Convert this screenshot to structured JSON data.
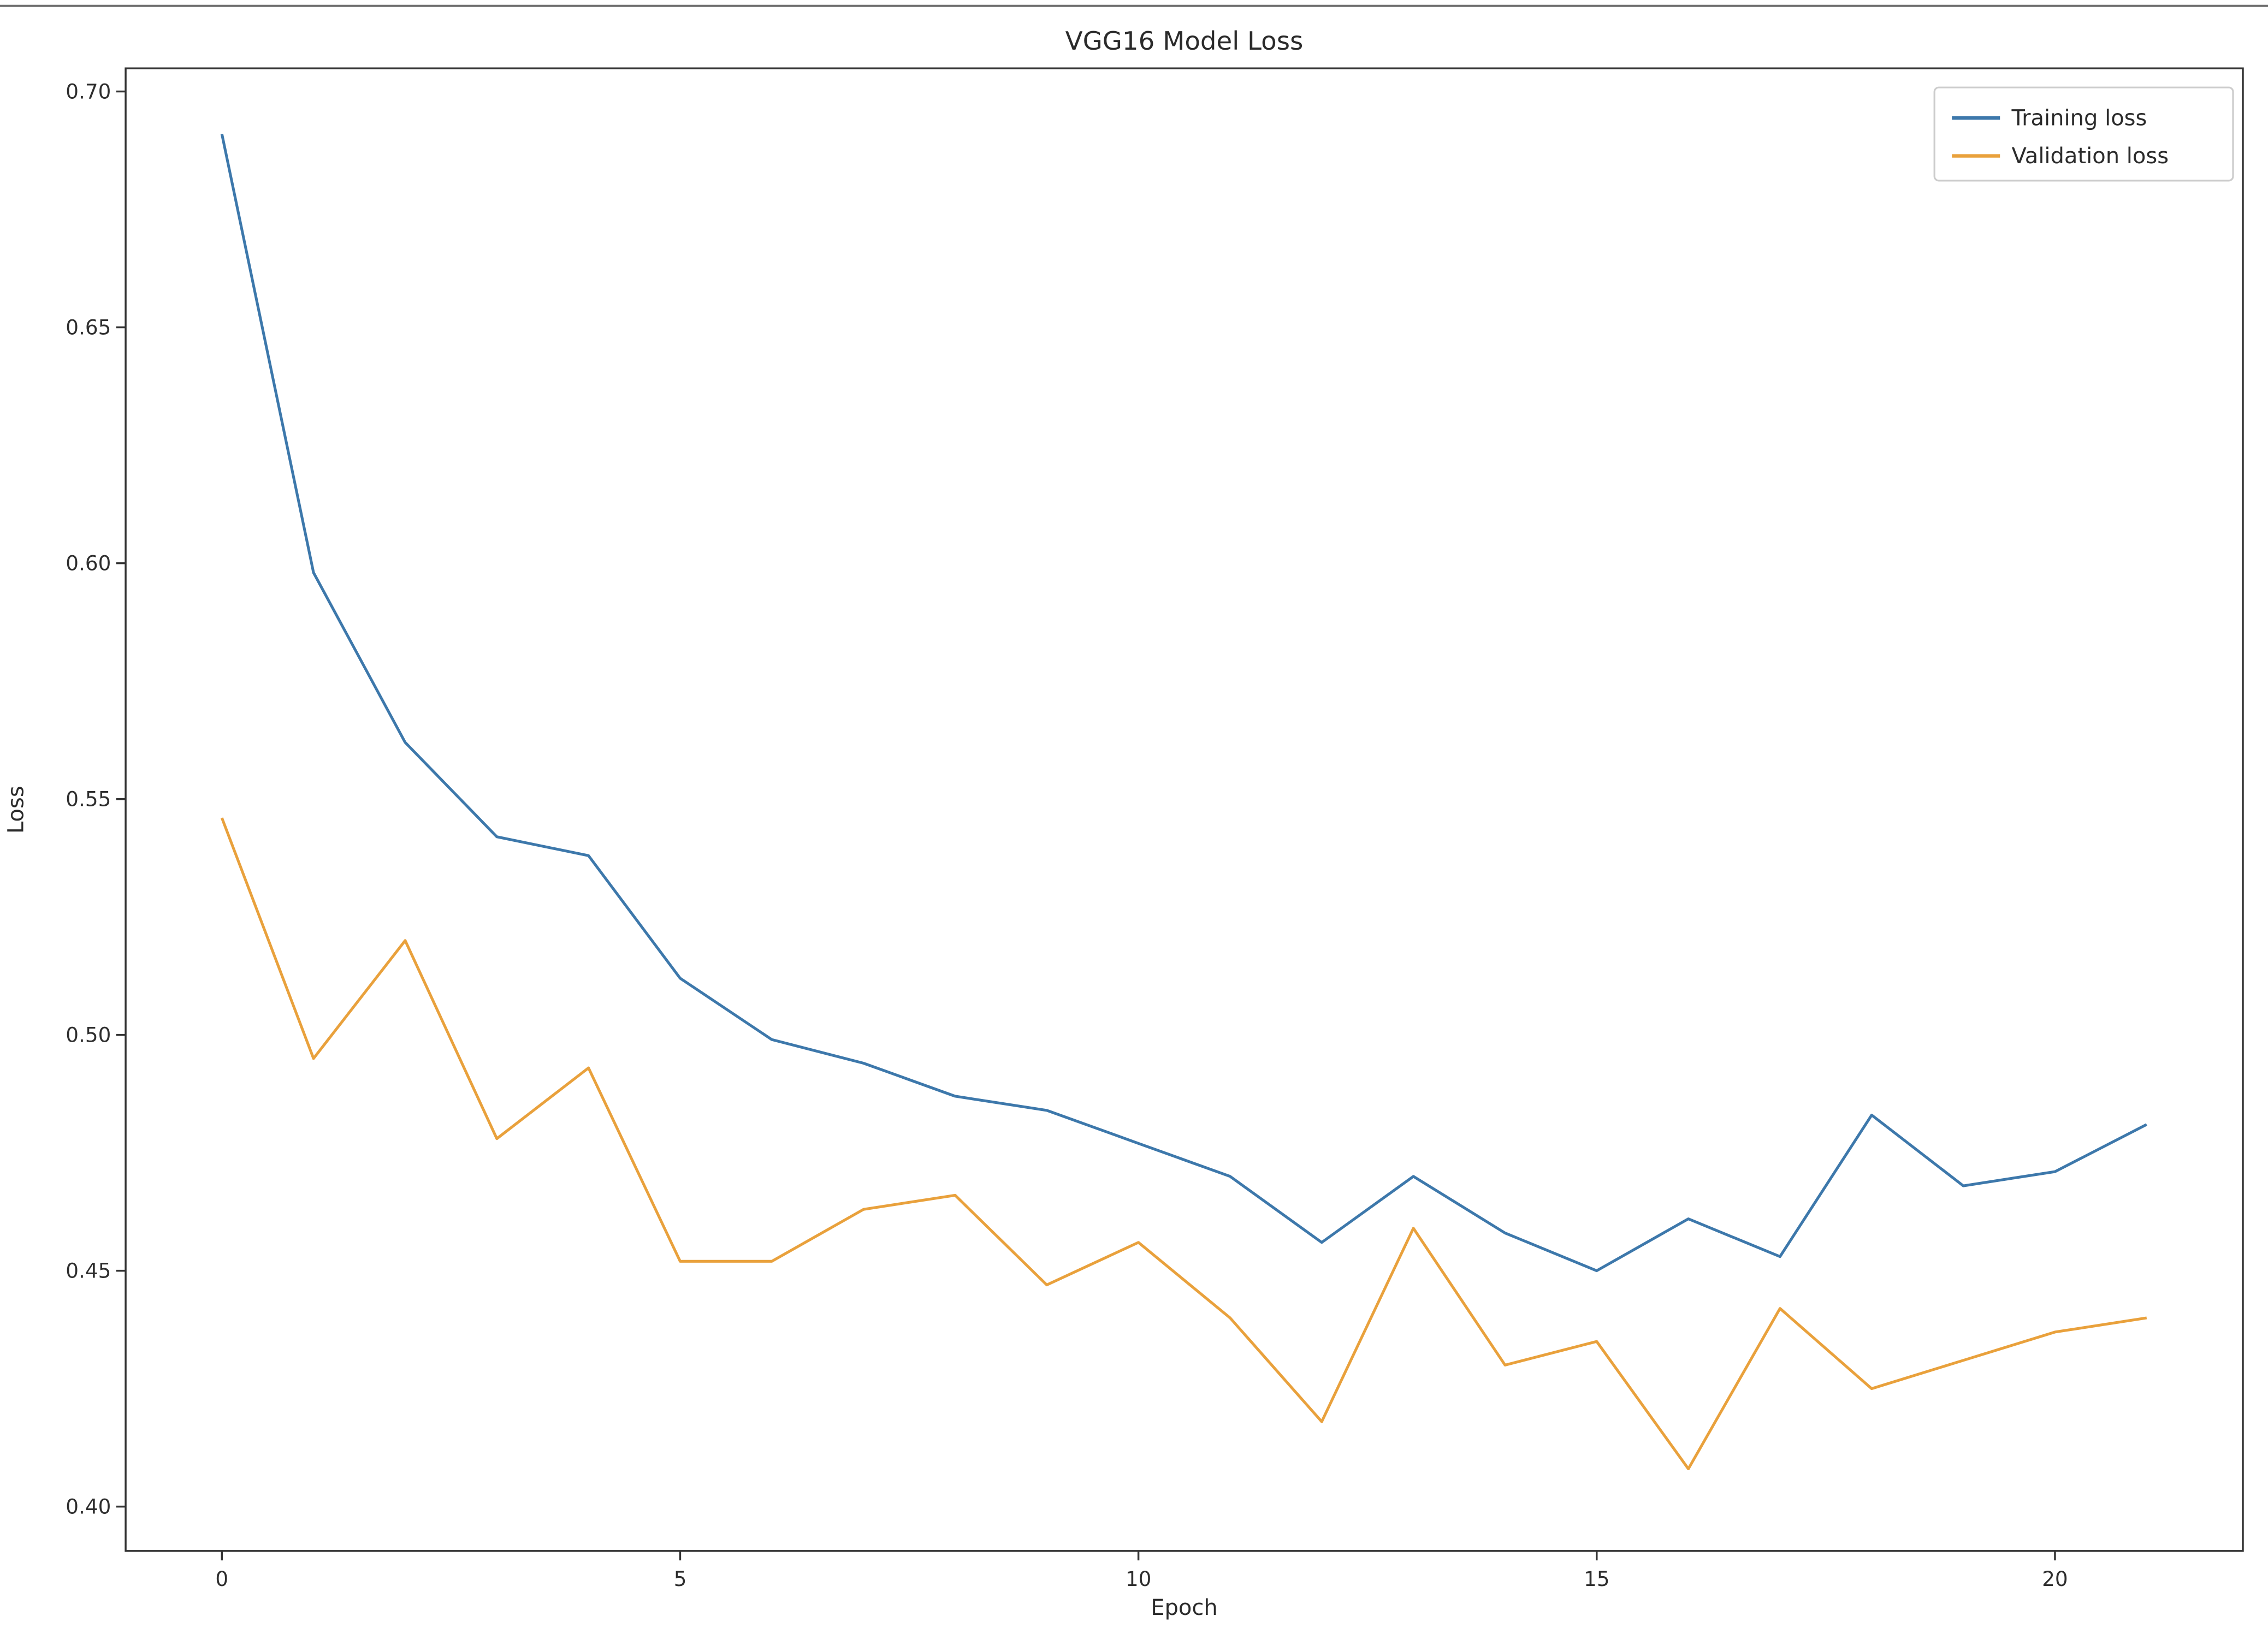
{
  "chart_data": {
    "type": "line",
    "title": "VGG16 Model Loss",
    "xlabel": "Epoch",
    "ylabel": "Loss",
    "x": [
      0,
      1,
      2,
      3,
      4,
      5,
      6,
      7,
      8,
      9,
      10,
      11,
      12,
      13,
      14,
      15,
      16,
      17,
      18,
      19,
      20,
      21
    ],
    "series": [
      {
        "name": "Training loss",
        "color": "#3d78ab",
        "values": [
          0.691,
          0.598,
          0.562,
          0.542,
          0.538,
          0.512,
          0.499,
          0.494,
          0.487,
          0.484,
          0.477,
          0.47,
          0.456,
          0.47,
          0.458,
          0.45,
          0.461,
          0.453,
          0.483,
          0.468,
          0.471,
          0.481
        ]
      },
      {
        "name": "Validation loss",
        "color": "#e9a13c",
        "values": [
          0.546,
          0.495,
          0.52,
          0.478,
          0.493,
          0.452,
          0.452,
          0.463,
          0.466,
          0.447,
          0.456,
          0.44,
          0.418,
          0.459,
          0.43,
          0.435,
          0.408,
          0.442,
          0.425,
          0.431,
          0.437,
          0.44
        ]
      }
    ],
    "xticks": [
      0,
      5,
      10,
      15,
      20
    ],
    "yticks": [
      0.4,
      0.45,
      0.5,
      0.55,
      0.6,
      0.65,
      0.7
    ],
    "xlim": [
      -1.05,
      22.05
    ],
    "ylim": [
      0.3906,
      0.7049
    ],
    "grid": false,
    "legend_position": "upper right"
  }
}
